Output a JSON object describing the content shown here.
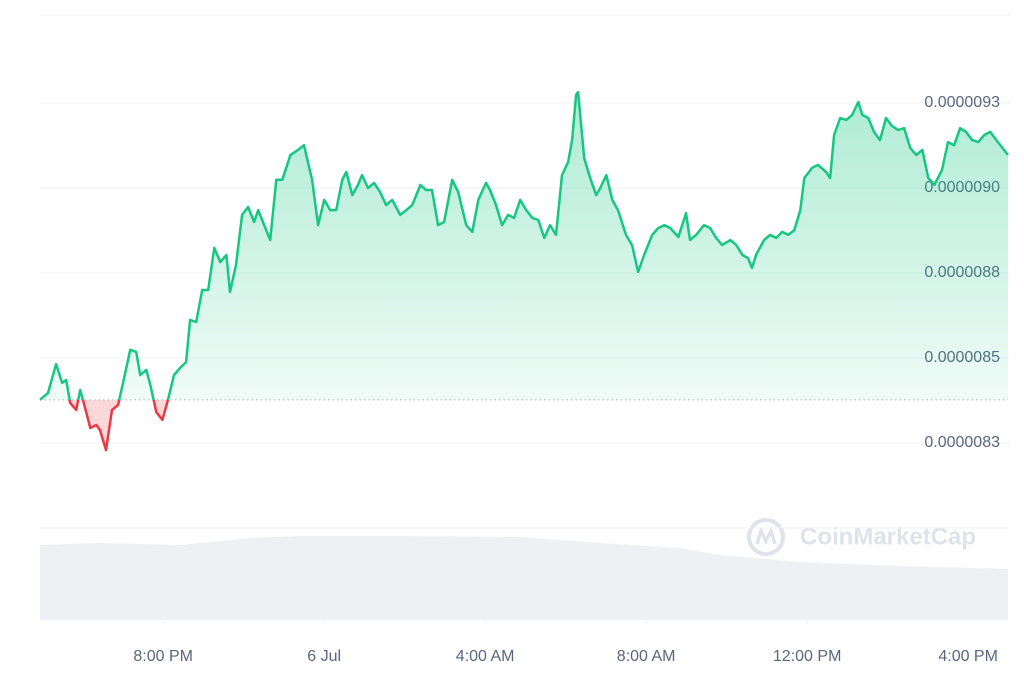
{
  "chart_data": {
    "type": "line",
    "watermark": "CoinMarketCap",
    "color": "#16c784",
    "down_color": "#ea3943",
    "baseline": 8.377e-06,
    "grid": true,
    "xlim": [
      -7.06,
      16.99
    ],
    "xticks": [
      {
        "value": -4,
        "label": "8:00 PM"
      },
      {
        "value": 0,
        "label": "6 Jul"
      },
      {
        "value": 4,
        "label": "4:00 AM"
      },
      {
        "value": 8,
        "label": "8:00 AM"
      },
      {
        "value": 12,
        "label": "12:00 PM"
      },
      {
        "value": 16,
        "label": "4:00 PM"
      }
    ],
    "ylim": [
      8e-06,
      9.5e-06
    ],
    "yticks": [
      {
        "value": 8.25e-06,
        "label": "0.0000083"
      },
      {
        "value": 8.5e-06,
        "label": "0.0000085"
      },
      {
        "value": 8.75e-06,
        "label": "0.0000088"
      },
      {
        "value": 9e-06,
        "label": "0.0000090"
      },
      {
        "value": 9.25e-06,
        "label": "0.0000093"
      }
    ],
    "x": [
      -7.06,
      -6.86,
      -6.66,
      -6.51,
      -6.41,
      -6.31,
      -6.16,
      -6.06,
      -5.96,
      -5.81,
      -5.66,
      -5.57,
      -5.42,
      -5.27,
      -5.12,
      -4.97,
      -4.82,
      -4.67,
      -4.57,
      -4.42,
      -4.32,
      -4.17,
      -4.02,
      -3.88,
      -3.73,
      -3.58,
      -3.43,
      -3.33,
      -3.18,
      -3.03,
      -2.88,
      -2.73,
      -2.58,
      -2.43,
      -2.34,
      -2.19,
      -2.04,
      -1.89,
      -1.74,
      -1.64,
      -1.49,
      -1.34,
      -1.19,
      -1.04,
      -0.84,
      -0.65,
      -0.5,
      -0.3,
      -0.15,
      0.0,
      0.15,
      0.3,
      0.45,
      0.55,
      0.7,
      0.84,
      0.94,
      1.09,
      1.24,
      1.39,
      1.54,
      1.69,
      1.89,
      2.04,
      2.19,
      2.39,
      2.53,
      2.68,
      2.83,
      2.98,
      3.18,
      3.33,
      3.53,
      3.68,
      3.83,
      4.02,
      4.12,
      4.27,
      4.42,
      4.57,
      4.72,
      4.87,
      5.02,
      5.17,
      5.32,
      5.47,
      5.61,
      5.76,
      5.91,
      6.06,
      6.16,
      6.26,
      6.31,
      6.46,
      6.61,
      6.76,
      6.86,
      7.01,
      7.16,
      7.3,
      7.5,
      7.65,
      7.8,
      7.95,
      8.15,
      8.3,
      8.45,
      8.6,
      8.8,
      8.99,
      9.09,
      9.24,
      9.44,
      9.59,
      9.74,
      9.89,
      10.09,
      10.24,
      10.39,
      10.53,
      10.63,
      10.73,
      10.93,
      11.08,
      11.23,
      11.38,
      11.53,
      11.68,
      11.83,
      11.93,
      12.12,
      12.27,
      12.47,
      12.57,
      12.67,
      12.82,
      12.97,
      13.12,
      13.27,
      13.37,
      13.52,
      13.66,
      13.81,
      13.96,
      14.11,
      14.26,
      14.41,
      14.56,
      14.71,
      14.86,
      15.01,
      15.16,
      15.35,
      15.5,
      15.65,
      15.8,
      15.95,
      16.1,
      16.25,
      16.4,
      16.55,
      16.7,
      16.85,
      16.99
    ],
    "values": [
      8.377e-06,
      8.397e-06,
      8.482e-06,
      8.427e-06,
      8.435e-06,
      8.368e-06,
      8.347e-06,
      8.406e-06,
      8.362e-06,
      8.294e-06,
      8.303e-06,
      8.288e-06,
      8.229e-06,
      8.347e-06,
      8.362e-06,
      8.441e-06,
      8.524e-06,
      8.518e-06,
      8.45e-06,
      8.465e-06,
      8.421e-06,
      8.341e-06,
      8.318e-06,
      8.377e-06,
      8.45e-06,
      8.471e-06,
      8.488e-06,
      8.612e-06,
      8.606e-06,
      8.7e-06,
      8.7e-06,
      8.824e-06,
      8.782e-06,
      8.803e-06,
      8.694e-06,
      8.774e-06,
      8.921e-06,
      8.944e-06,
      8.9e-06,
      8.935e-06,
      8.891e-06,
      8.847e-06,
      9.024e-06,
      9.024e-06,
      9.097e-06,
      9.112e-06,
      9.126e-06,
      9.024e-06,
      8.891e-06,
      8.965e-06,
      8.935e-06,
      8.935e-06,
      9.024e-06,
      9.047e-06,
      8.979e-06,
      9.009e-06,
      9.038e-06,
      9e-06,
      9.015e-06,
      8.988e-06,
      8.95e-06,
      8.965e-06,
      8.921e-06,
      8.935e-06,
      8.95e-06,
      9.009e-06,
      8.994e-06,
      8.994e-06,
      8.891e-06,
      8.9e-06,
      9.024e-06,
      8.988e-06,
      8.891e-06,
      8.871e-06,
      8.965e-06,
      9.015e-06,
      8.994e-06,
      8.95e-06,
      8.891e-06,
      8.921e-06,
      8.912e-06,
      8.965e-06,
      8.935e-06,
      8.912e-06,
      8.906e-06,
      8.853e-06,
      8.891e-06,
      8.862e-06,
      9.038e-06,
      9.076e-06,
      9.141e-06,
      9.274e-06,
      9.282e-06,
      9.088e-06,
      9.029e-06,
      8.979e-06,
      9e-06,
      9.038e-06,
      8.965e-06,
      8.935e-06,
      8.862e-06,
      8.832e-06,
      8.753e-06,
      8.803e-06,
      8.862e-06,
      8.882e-06,
      8.891e-06,
      8.882e-06,
      8.856e-06,
      8.926e-06,
      8.847e-06,
      8.862e-06,
      8.891e-06,
      8.882e-06,
      8.853e-06,
      8.832e-06,
      8.847e-06,
      8.832e-06,
      8.803e-06,
      8.794e-06,
      8.765e-06,
      8.803e-06,
      8.847e-06,
      8.862e-06,
      8.853e-06,
      8.871e-06,
      8.862e-06,
      8.876e-06,
      8.935e-06,
      9.029e-06,
      9.059e-06,
      9.068e-06,
      9.047e-06,
      9.029e-06,
      9.156e-06,
      9.206e-06,
      9.2e-06,
      9.215e-06,
      9.253e-06,
      9.215e-06,
      9.206e-06,
      9.165e-06,
      9.141e-06,
      9.206e-06,
      9.182e-06,
      9.171e-06,
      9.176e-06,
      9.118e-06,
      9.097e-06,
      9.112e-06,
      9.029e-06,
      9.009e-06,
      9.053e-06,
      9.135e-06,
      9.126e-06,
      9.176e-06,
      9.165e-06,
      9.141e-06,
      9.135e-06,
      9.156e-06,
      9.165e-06,
      9.141e-06,
      9.118e-06,
      9.097e-06
    ]
  }
}
